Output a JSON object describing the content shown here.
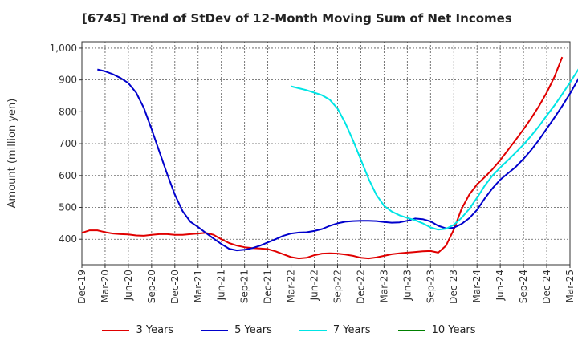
{
  "title": "[6745]  Trend of StDev of 12-Month Moving Sum of Net Incomes",
  "chart_data": {
    "type": "line",
    "title": "[6745]  Trend of StDev of 12-Month Moving Sum of Net Incomes",
    "xlabel": "",
    "ylabel": "Amount (million yen)",
    "ylim": [
      320,
      1020
    ],
    "yticks": [
      400,
      500,
      600,
      700,
      800,
      900,
      1000
    ],
    "ytick_labels": [
      "400",
      "500",
      "600",
      "700",
      "800",
      "900",
      "1,000"
    ],
    "xticks": [
      "Dec-19",
      "Mar-20",
      "Jun-20",
      "Sep-20",
      "Dec-20",
      "Mar-21",
      "Jun-21",
      "Sep-21",
      "Dec-21",
      "Mar-22",
      "Jun-22",
      "Sep-22",
      "Dec-22",
      "Mar-23",
      "Jun-23",
      "Sep-23",
      "Dec-23",
      "Mar-24",
      "Jun-24",
      "Sep-24",
      "Dec-24",
      "Mar-25"
    ],
    "grid": true,
    "legend_position": "bottom",
    "series": [
      {
        "name": "3 Years",
        "color": "#e00000",
        "values": [
          [
            0,
            420
          ],
          [
            1,
            428
          ],
          [
            2,
            428
          ],
          [
            3,
            422
          ],
          [
            4,
            418
          ],
          [
            5,
            416
          ],
          [
            6,
            415
          ],
          [
            7,
            412
          ],
          [
            8,
            411
          ],
          [
            9,
            414
          ],
          [
            10,
            416
          ],
          [
            11,
            416
          ],
          [
            12,
            414
          ],
          [
            13,
            414
          ],
          [
            14,
            416
          ],
          [
            15,
            418
          ],
          [
            16,
            420
          ],
          [
            17,
            414
          ],
          [
            18,
            400
          ],
          [
            19,
            388
          ],
          [
            20,
            380
          ],
          [
            21,
            375
          ],
          [
            22,
            372
          ],
          [
            23,
            371
          ],
          [
            24,
            369
          ],
          [
            25,
            362
          ],
          [
            26,
            353
          ],
          [
            27,
            344
          ],
          [
            28,
            340
          ],
          [
            29,
            342
          ],
          [
            30,
            350
          ],
          [
            31,
            355
          ],
          [
            32,
            356
          ],
          [
            33,
            355
          ],
          [
            34,
            352
          ],
          [
            35,
            348
          ],
          [
            36,
            342
          ],
          [
            37,
            340
          ],
          [
            38,
            343
          ],
          [
            39,
            348
          ],
          [
            40,
            353
          ],
          [
            41,
            356
          ],
          [
            42,
            358
          ],
          [
            43,
            360
          ],
          [
            44,
            362
          ],
          [
            45,
            363
          ],
          [
            46,
            358
          ],
          [
            47,
            380
          ],
          [
            48,
            430
          ],
          [
            49,
            495
          ],
          [
            50,
            540
          ],
          [
            51,
            572
          ],
          [
            52,
            595
          ],
          [
            53,
            620
          ],
          [
            54,
            648
          ],
          [
            55,
            680
          ],
          [
            56,
            712
          ],
          [
            57,
            745
          ],
          [
            58,
            780
          ],
          [
            59,
            818
          ],
          [
            60,
            860
          ],
          [
            61,
            910
          ],
          [
            62,
            972
          ]
        ]
      },
      {
        "name": "5 Years",
        "color": "#0000cc",
        "values": [
          [
            2,
            933
          ],
          [
            3,
            927
          ],
          [
            4,
            918
          ],
          [
            5,
            906
          ],
          [
            6,
            890
          ],
          [
            7,
            860
          ],
          [
            8,
            812
          ],
          [
            9,
            745
          ],
          [
            10,
            675
          ],
          [
            11,
            605
          ],
          [
            12,
            540
          ],
          [
            13,
            488
          ],
          [
            14,
            455
          ],
          [
            15,
            438
          ],
          [
            16,
            420
          ],
          [
            17,
            402
          ],
          [
            18,
            385
          ],
          [
            19,
            370
          ],
          [
            20,
            365
          ],
          [
            21,
            367
          ],
          [
            22,
            372
          ],
          [
            23,
            380
          ],
          [
            24,
            390
          ],
          [
            25,
            400
          ],
          [
            26,
            411
          ],
          [
            27,
            418
          ],
          [
            28,
            421
          ],
          [
            29,
            422
          ],
          [
            30,
            426
          ],
          [
            31,
            432
          ],
          [
            32,
            442
          ],
          [
            33,
            450
          ],
          [
            34,
            455
          ],
          [
            35,
            457
          ],
          [
            36,
            458
          ],
          [
            37,
            458
          ],
          [
            38,
            457
          ],
          [
            39,
            454
          ],
          [
            40,
            452
          ],
          [
            41,
            453
          ],
          [
            42,
            458
          ],
          [
            43,
            465
          ],
          [
            44,
            463
          ],
          [
            45,
            456
          ],
          [
            46,
            442
          ],
          [
            47,
            434
          ],
          [
            48,
            436
          ],
          [
            49,
            448
          ],
          [
            50,
            466
          ],
          [
            51,
            492
          ],
          [
            52,
            528
          ],
          [
            53,
            560
          ],
          [
            54,
            587
          ],
          [
            55,
            607
          ],
          [
            56,
            627
          ],
          [
            57,
            652
          ],
          [
            58,
            680
          ],
          [
            59,
            712
          ],
          [
            60,
            747
          ],
          [
            61,
            782
          ],
          [
            62,
            818
          ],
          [
            63,
            857
          ],
          [
            64,
            900
          ],
          [
            65,
            945
          ],
          [
            66,
            988
          ]
        ]
      },
      {
        "name": "7 Years",
        "color": "#00e5e5",
        "values": [
          [
            27,
            880
          ],
          [
            28,
            874
          ],
          [
            29,
            868
          ],
          [
            30,
            860
          ],
          [
            31,
            852
          ],
          [
            32,
            838
          ],
          [
            33,
            810
          ],
          [
            34,
            765
          ],
          [
            35,
            710
          ],
          [
            36,
            650
          ],
          [
            37,
            590
          ],
          [
            38,
            540
          ],
          [
            39,
            505
          ],
          [
            40,
            487
          ],
          [
            41,
            475
          ],
          [
            42,
            467
          ],
          [
            43,
            460
          ],
          [
            44,
            450
          ],
          [
            45,
            437
          ],
          [
            46,
            430
          ],
          [
            47,
            433
          ],
          [
            48,
            445
          ],
          [
            49,
            467
          ],
          [
            50,
            495
          ],
          [
            51,
            530
          ],
          [
            52,
            568
          ],
          [
            53,
            600
          ],
          [
            54,
            625
          ],
          [
            55,
            648
          ],
          [
            56,
            672
          ],
          [
            57,
            697
          ],
          [
            58,
            725
          ],
          [
            59,
            755
          ],
          [
            60,
            788
          ],
          [
            61,
            820
          ],
          [
            62,
            855
          ],
          [
            63,
            892
          ],
          [
            64,
            930
          ],
          [
            65,
            965
          ],
          [
            66,
            998
          ]
        ]
      },
      {
        "name": "10 Years",
        "color": "#008000",
        "values": []
      }
    ]
  }
}
